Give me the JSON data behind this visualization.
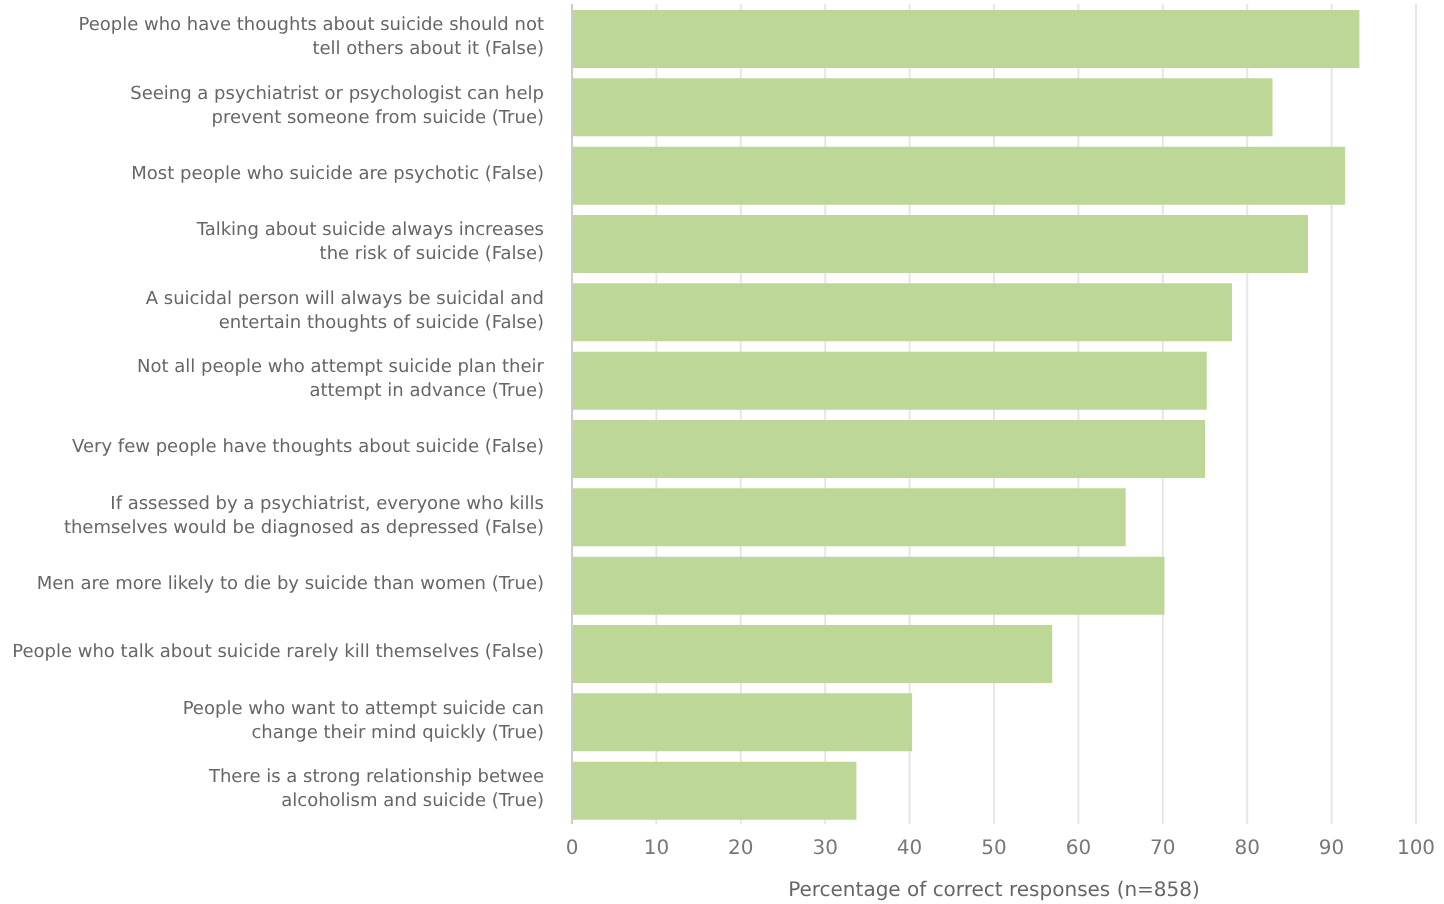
{
  "chart_data": {
    "type": "bar",
    "orientation": "horizontal",
    "xlabel": "Percentage of correct responses (n=858)",
    "categories": [
      "People who have thoughts about suicide should not\ntell others about it (False)",
      "Seeing a psychiatrist or psychologist can help\nprevent someone from suicide (True)",
      "Most people who suicide are psychotic (False)",
      "Talking about suicide always increases\nthe risk of suicide (False)",
      "A suicidal person will always be suicidal and\nentertain thoughts of suicide (False)",
      "Not all people who attempt suicide plan their\nattempt in advance (True)",
      "Very few people have thoughts about suicide (False)",
      "If assessed by a psychiatrist, everyone who kills\nthemselves would be diagnosed as depressed (False)",
      "Men are more likely to die by suicide than women (True)",
      "People who talk about suicide rarely kill themselves (False)",
      "People who want to attempt suicide can\nchange their mind quickly (True)",
      "There is a strong relationship betwee\nalcoholism and suicide (True)"
    ],
    "values": [
      93.3,
      83,
      91.6,
      87.2,
      78.2,
      75.2,
      75,
      65.6,
      70.2,
      56.9,
      40.3,
      33.7
    ],
    "color": "#bdd797",
    "xlim": [
      0,
      100
    ],
    "xticks": [
      0,
      10,
      20,
      30,
      40,
      50,
      60,
      70,
      80,
      90,
      100
    ],
    "grid": "x"
  }
}
